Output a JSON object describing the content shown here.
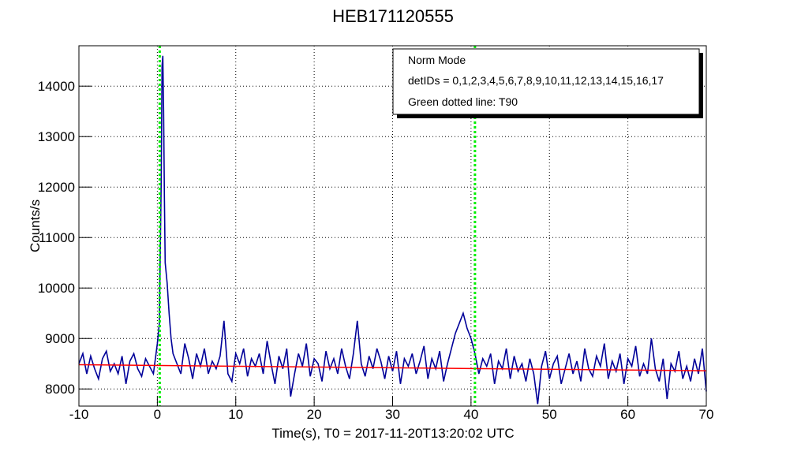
{
  "chart_data": {
    "type": "line",
    "title": "HEB171120555",
    "x_label": "Time(s), T0 = 2017-11-20T13:20:02 UTC",
    "y_label": "Counts/s",
    "legend_lines": [
      "Norm Mode",
      "detIDs = 0,1,2,3,4,5,6,7,8,9,10,11,12,13,14,15,16,17",
      "Green dotted line: T90"
    ],
    "xlim": [
      -10,
      70
    ],
    "ylim": [
      7660,
      14800
    ],
    "xticks": [
      -10,
      0,
      10,
      20,
      30,
      40,
      50,
      60,
      70
    ],
    "yticks": [
      8000,
      9000,
      10000,
      11000,
      12000,
      13000,
      14000
    ],
    "grid": true,
    "t90_lines": [
      0.3,
      40.5
    ],
    "t90_color": "#00ee00",
    "series": [
      {
        "color": "#000099",
        "x": [
          -10,
          -9.5,
          -9,
          -8.5,
          -8,
          -7.5,
          -7,
          -6.5,
          -6,
          -5.5,
          -5,
          -4.5,
          -4,
          -3.5,
          -3,
          -2.5,
          -2,
          -1.5,
          -1,
          -0.5,
          0,
          0.25,
          0.5,
          0.6,
          0.7,
          0.8,
          0.9,
          1,
          1.25,
          1.5,
          1.75,
          2,
          2.5,
          3,
          3.5,
          4,
          4.5,
          5,
          5.5,
          6,
          6.5,
          7,
          7.5,
          8,
          8.5,
          9,
          9.5,
          10,
          10.5,
          11,
          11.5,
          12,
          12.5,
          13,
          13.5,
          14,
          14.5,
          15,
          15.5,
          16,
          16.5,
          17,
          17.5,
          18,
          18.5,
          19,
          19.5,
          20,
          20.5,
          21,
          21.5,
          22,
          22.5,
          23,
          23.5,
          24,
          24.5,
          25,
          25.5,
          26,
          26.5,
          27,
          27.5,
          28,
          28.5,
          29,
          29.5,
          30,
          30.5,
          31,
          31.5,
          32,
          32.5,
          33,
          33.5,
          34,
          34.5,
          35,
          35.5,
          36,
          36.5,
          37,
          37.5,
          38,
          38.5,
          39,
          39.5,
          40,
          40.5,
          41,
          41.5,
          42,
          42.5,
          43,
          43.5,
          44,
          44.5,
          45,
          45.5,
          46,
          46.5,
          47,
          47.5,
          48,
          48.5,
          49,
          49.5,
          50,
          50.5,
          51,
          51.5,
          52,
          52.5,
          53,
          53.5,
          54,
          54.5,
          55,
          55.5,
          56,
          56.5,
          57,
          57.5,
          58,
          58.5,
          59,
          59.5,
          60,
          60.5,
          61,
          61.5,
          62,
          62.5,
          63,
          63.5,
          64,
          64.5,
          65,
          65.5,
          66,
          66.5,
          67,
          67.5,
          68,
          68.5,
          69,
          69.5,
          70
        ],
        "values": [
          8500,
          8700,
          8300,
          8650,
          8400,
          8200,
          8600,
          8750,
          8350,
          8500,
          8300,
          8650,
          8100,
          8550,
          8700,
          8400,
          8250,
          8600,
          8450,
          8300,
          8900,
          9300,
          12200,
          14400,
          14600,
          13500,
          11800,
          10500,
          10100,
          9500,
          9000,
          8700,
          8500,
          8300,
          8900,
          8600,
          8200,
          8700,
          8450,
          8800,
          8300,
          8550,
          8400,
          8650,
          9350,
          8300,
          8150,
          8700,
          8500,
          8800,
          8250,
          8600,
          8450,
          8700,
          8300,
          8950,
          8500,
          8100,
          8650,
          8400,
          8800,
          7850,
          8300,
          8700,
          8450,
          8900,
          8250,
          8600,
          8500,
          8150,
          8750,
          8400,
          8600,
          8300,
          8800,
          8450,
          8200,
          8700,
          9350,
          8500,
          8250,
          8650,
          8400,
          8800,
          8550,
          8200,
          8650,
          8350,
          8750,
          8100,
          8600,
          8450,
          8700,
          8300,
          8550,
          8850,
          8200,
          8600,
          8400,
          8750,
          8150,
          8500,
          8800,
          9100,
          9300,
          9500,
          9200,
          9000,
          8700,
          8300,
          8600,
          8450,
          8700,
          8100,
          8550,
          8400,
          8800,
          8200,
          8650,
          8350,
          8500,
          8150,
          8600,
          8300,
          7700,
          8450,
          8750,
          8200,
          8500,
          8650,
          8100,
          8400,
          8700,
          8300,
          8550,
          8150,
          8800,
          8400,
          8250,
          8650,
          8450,
          8900,
          8200,
          8550,
          8350,
          8700,
          8100,
          8600,
          8450,
          8850,
          8250,
          8500,
          8300,
          9000,
          8400,
          8150,
          8600,
          7800,
          8500,
          8350,
          8750,
          8200,
          8450,
          8150,
          8600,
          8300,
          8800,
          7950
        ]
      },
      {
        "color": "#ff0000",
        "x": [
          -10,
          70
        ],
        "values": [
          8480,
          8360
        ]
      }
    ]
  }
}
